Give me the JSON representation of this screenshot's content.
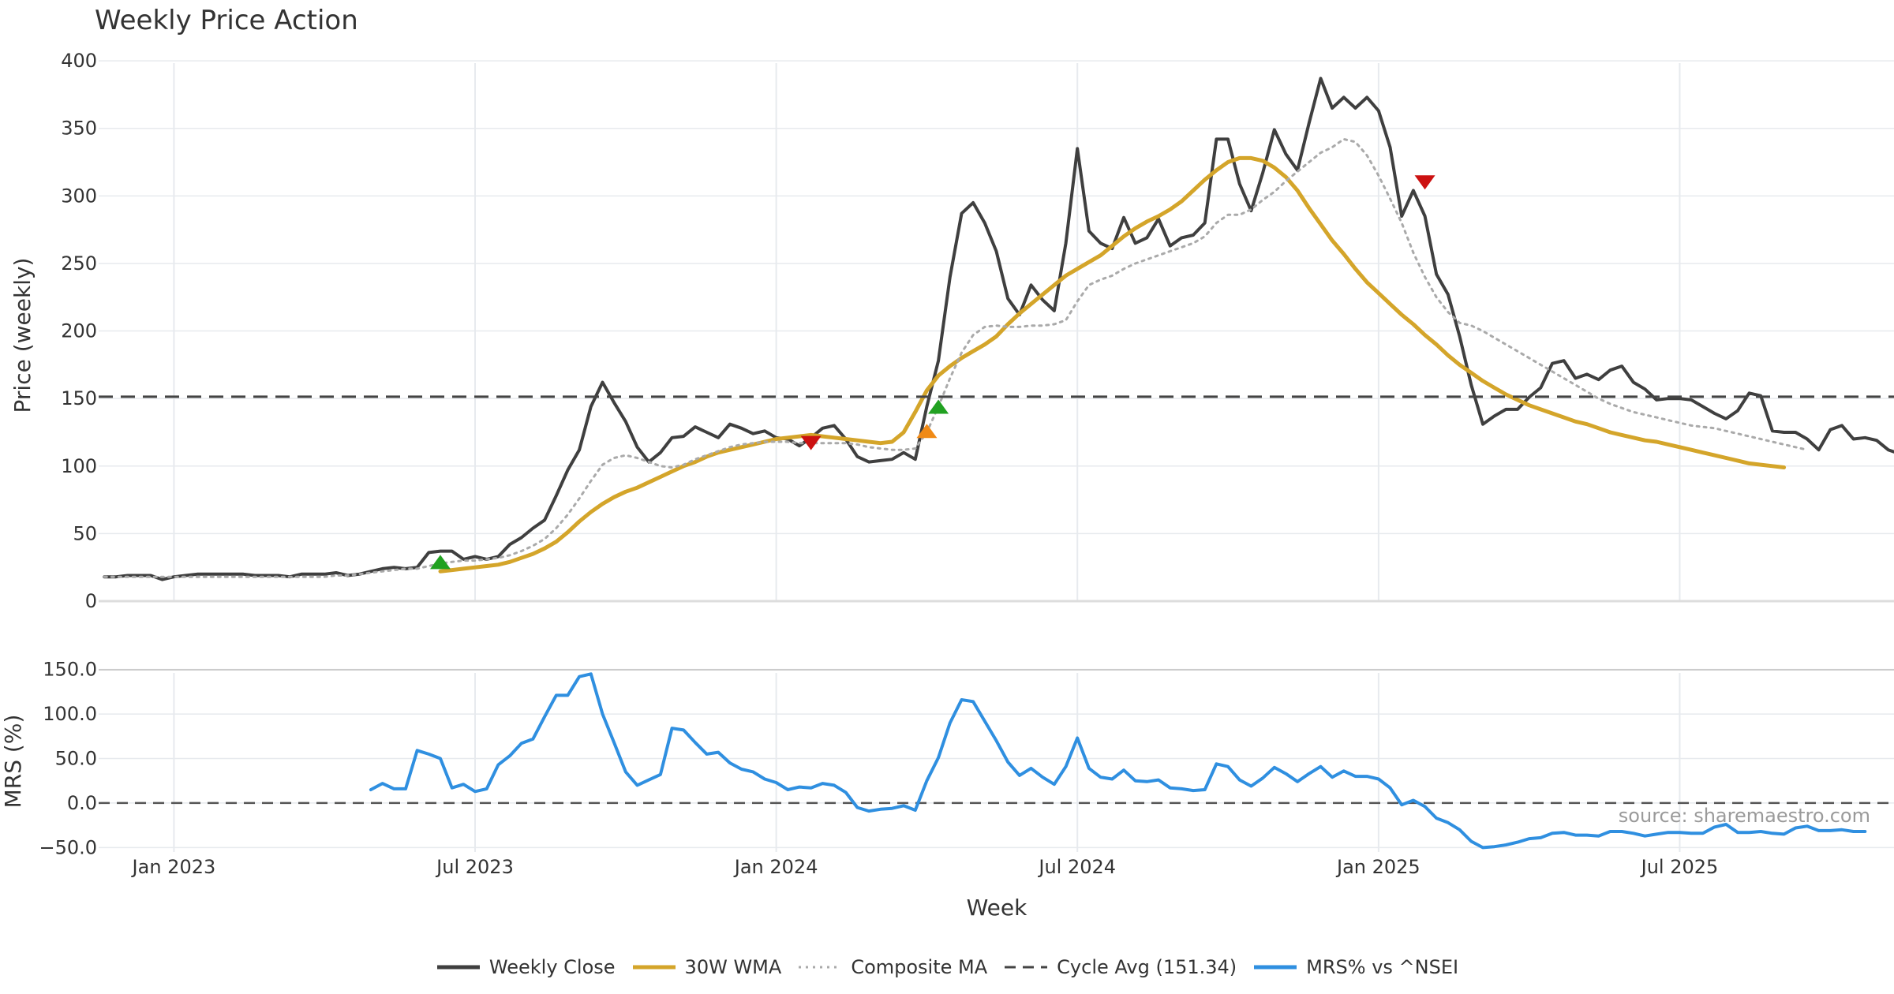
{
  "title": "Weekly Price Action",
  "source": "source: sharemaestro.com",
  "colors": {
    "close": "#3f3f3f",
    "wma": "#d4a52a",
    "composite": "#aaaaaa",
    "cycle": "#444444",
    "mrs": "#2f8fe0",
    "buy": "#21a121",
    "sell": "#cc1111",
    "orange": "#f08a16",
    "grid": "#e7eaee"
  },
  "legend": [
    {
      "key": "close",
      "label": "Weekly Close",
      "style": "solid"
    },
    {
      "key": "wma",
      "label": "30W WMA",
      "style": "solid"
    },
    {
      "key": "composite",
      "label": "Composite MA",
      "style": "dotted"
    },
    {
      "key": "cycle",
      "label": "Cycle Avg (151.34)",
      "style": "dashed"
    },
    {
      "key": "mrs",
      "label": "MRS% vs ^NSEI",
      "style": "solid"
    }
  ],
  "chart_data": [
    {
      "type": "line",
      "panel": "price",
      "ylabel": "Price (weekly)",
      "xlabel": "Week",
      "ylim": [
        0,
        410
      ],
      "yticks": [
        0,
        50,
        100,
        150,
        200,
        250,
        300,
        350,
        400
      ],
      "x_ticks": [
        {
          "label": "Jan 2023",
          "week": 6
        },
        {
          "label": "Jul 2023",
          "week": 32
        },
        {
          "label": "Jan 2024",
          "week": 58
        },
        {
          "label": "Jul 2024",
          "week": 84
        },
        {
          "label": "Jan 2025",
          "week": 110
        },
        {
          "label": "Jul 2025",
          "week": 136
        }
      ],
      "x_range": [
        -0.5,
        154.5
      ],
      "cycle_avg": 151.34,
      "series": [
        {
          "name": "Weekly Close",
          "key": "close",
          "start_week": 0,
          "values": [
            18,
            18,
            19,
            19,
            19,
            16,
            18,
            19,
            20,
            20,
            20,
            20,
            20,
            19,
            19,
            19,
            18,
            20,
            20,
            20,
            21,
            19,
            20,
            22,
            24,
            25,
            24,
            25,
            36,
            37,
            37,
            31,
            33,
            31,
            33,
            42,
            47,
            54,
            60,
            78,
            97,
            112,
            144,
            162,
            147,
            133,
            114,
            103,
            110,
            121,
            122,
            129,
            125,
            121,
            131,
            128,
            124,
            126,
            121,
            120,
            115,
            121,
            128,
            130,
            120,
            107,
            103,
            104,
            105,
            110,
            105,
            144,
            178,
            240,
            287,
            295,
            280,
            259,
            224,
            212,
            234,
            223,
            215,
            265,
            335,
            274,
            265,
            261,
            284,
            265,
            269,
            283,
            263,
            269,
            271,
            280,
            342,
            342,
            309,
            289,
            317,
            349,
            331,
            319,
            354,
            387,
            365,
            373,
            365,
            373,
            363,
            336,
            285,
            304,
            285,
            242,
            227,
            196,
            160,
            131,
            137,
            142,
            142,
            151,
            158,
            176,
            178,
            165,
            168,
            164,
            171,
            174,
            162,
            157,
            149,
            150,
            150,
            149,
            144,
            139,
            135,
            141,
            154,
            152,
            126,
            125,
            125,
            120,
            112,
            127,
            130,
            120,
            121,
            119,
            112,
            109
          ]
        },
        {
          "name": "30W WMA",
          "key": "wma",
          "start_week": 29,
          "values": [
            22,
            23,
            24,
            25,
            26,
            27,
            29,
            32,
            35,
            39,
            44,
            51,
            59,
            66,
            72,
            77,
            81,
            84,
            88,
            92,
            96,
            100,
            103,
            107,
            110,
            112,
            114,
            116,
            118,
            120,
            121,
            122,
            123,
            122,
            121,
            120,
            119,
            118,
            117,
            118,
            125,
            140,
            156,
            167,
            174,
            180,
            185,
            190,
            196,
            205,
            213,
            220,
            227,
            234,
            241,
            246,
            251,
            256,
            263,
            270,
            276,
            281,
            285,
            290,
            296,
            304,
            312,
            319,
            325,
            328,
            328,
            326,
            321,
            314,
            304,
            291,
            279,
            267,
            257,
            246,
            236,
            228,
            220,
            212,
            205,
            197,
            190,
            182,
            175,
            169,
            163,
            158,
            153,
            149,
            145,
            142,
            139,
            136,
            133,
            131,
            128,
            125,
            123,
            121,
            119,
            118,
            116,
            114,
            112,
            110,
            108,
            106,
            104,
            102,
            101,
            100,
            99
          ]
        },
        {
          "name": "Composite MA",
          "key": "composite",
          "start_week": 0,
          "values": [
            18,
            18,
            18,
            18,
            18,
            18,
            18,
            18,
            18,
            18,
            18,
            18,
            18,
            18,
            18,
            18,
            18,
            18,
            18,
            18,
            19,
            19,
            20,
            21,
            22,
            23,
            24,
            24,
            26,
            28,
            29,
            30,
            30,
            31,
            32,
            34,
            37,
            41,
            46,
            54,
            64,
            76,
            89,
            101,
            106,
            108,
            106,
            103,
            100,
            99,
            101,
            105,
            108,
            111,
            114,
            116,
            117,
            118,
            118,
            118,
            117,
            117,
            117,
            117,
            117,
            116,
            114,
            113,
            112,
            112,
            113,
            125,
            144,
            165,
            184,
            197,
            203,
            204,
            203,
            203,
            204,
            204,
            205,
            208,
            222,
            234,
            238,
            241,
            246,
            250,
            253,
            256,
            259,
            262,
            265,
            270,
            280,
            286,
            286,
            290,
            297,
            303,
            311,
            318,
            325,
            332,
            336,
            342,
            340,
            330,
            315,
            298,
            280,
            258,
            240,
            225,
            214,
            206,
            204,
            200,
            195,
            190,
            185,
            180,
            175,
            170,
            165,
            160,
            155,
            150,
            146,
            143,
            140,
            138,
            136,
            134,
            132,
            130,
            129,
            128,
            126,
            124,
            122,
            120,
            118,
            116,
            114,
            112
          ]
        },
        {
          "name": "Cycle Avg (151.34)",
          "key": "cycle",
          "constant": 151.34
        }
      ],
      "markers": [
        {
          "kind": "buy",
          "color_key": "buy",
          "week": 29,
          "y": 29,
          "dir": "up"
        },
        {
          "kind": "sell",
          "color_key": "sell",
          "week": 61,
          "y": 117,
          "dir": "down"
        },
        {
          "kind": "buy",
          "color_key": "orange",
          "week": 71,
          "y": 126,
          "dir": "up"
        },
        {
          "kind": "buy",
          "color_key": "buy",
          "week": 72,
          "y": 144,
          "dir": "up"
        },
        {
          "kind": "sell",
          "color_key": "sell",
          "week": 114,
          "y": 310,
          "dir": "down"
        }
      ]
    },
    {
      "type": "line",
      "panel": "mrs",
      "ylabel": "MRS (%)",
      "ylim": [
        -55,
        155
      ],
      "yticks": [
        -50.0,
        0.0,
        50.0,
        100.0,
        150.0
      ],
      "ytick_labels": [
        "−50.0",
        "0.0",
        "50.0",
        "100.0",
        "150.0"
      ],
      "zero_line": 0,
      "series": [
        {
          "name": "MRS% vs ^NSEI",
          "key": "mrs",
          "start_week": 23,
          "values": [
            15,
            22,
            16,
            16,
            59,
            55,
            50,
            17,
            21,
            13,
            16,
            43,
            53,
            67,
            72,
            97,
            121,
            121,
            142,
            145,
            100,
            68,
            35,
            20,
            26,
            32,
            84,
            82,
            68,
            55,
            57,
            45,
            38,
            35,
            27,
            23,
            15,
            18,
            17,
            22,
            20,
            12,
            -5,
            -9,
            -7,
            -6,
            -3,
            -8,
            25,
            51,
            90,
            116,
            114,
            92,
            70,
            46,
            31,
            39,
            29,
            21,
            41,
            73,
            39,
            29,
            27,
            37,
            25,
            24,
            26,
            17,
            16,
            14,
            15,
            44,
            41,
            26,
            19,
            28,
            40,
            33,
            24,
            33,
            41,
            29,
            36,
            30,
            30,
            27,
            17,
            -2,
            3,
            -4,
            -17,
            -22,
            -30,
            -43,
            -50,
            -49,
            -47,
            -44,
            -40,
            -39,
            -34,
            -33,
            -36,
            -36,
            -37,
            -32,
            -32,
            -34,
            -37,
            -35,
            -33,
            -33,
            -34,
            -34,
            -27,
            -24,
            -33,
            -33,
            -32,
            -34,
            -35,
            -28,
            -26,
            -31,
            -31,
            -30,
            -32,
            -32
          ]
        }
      ]
    }
  ]
}
